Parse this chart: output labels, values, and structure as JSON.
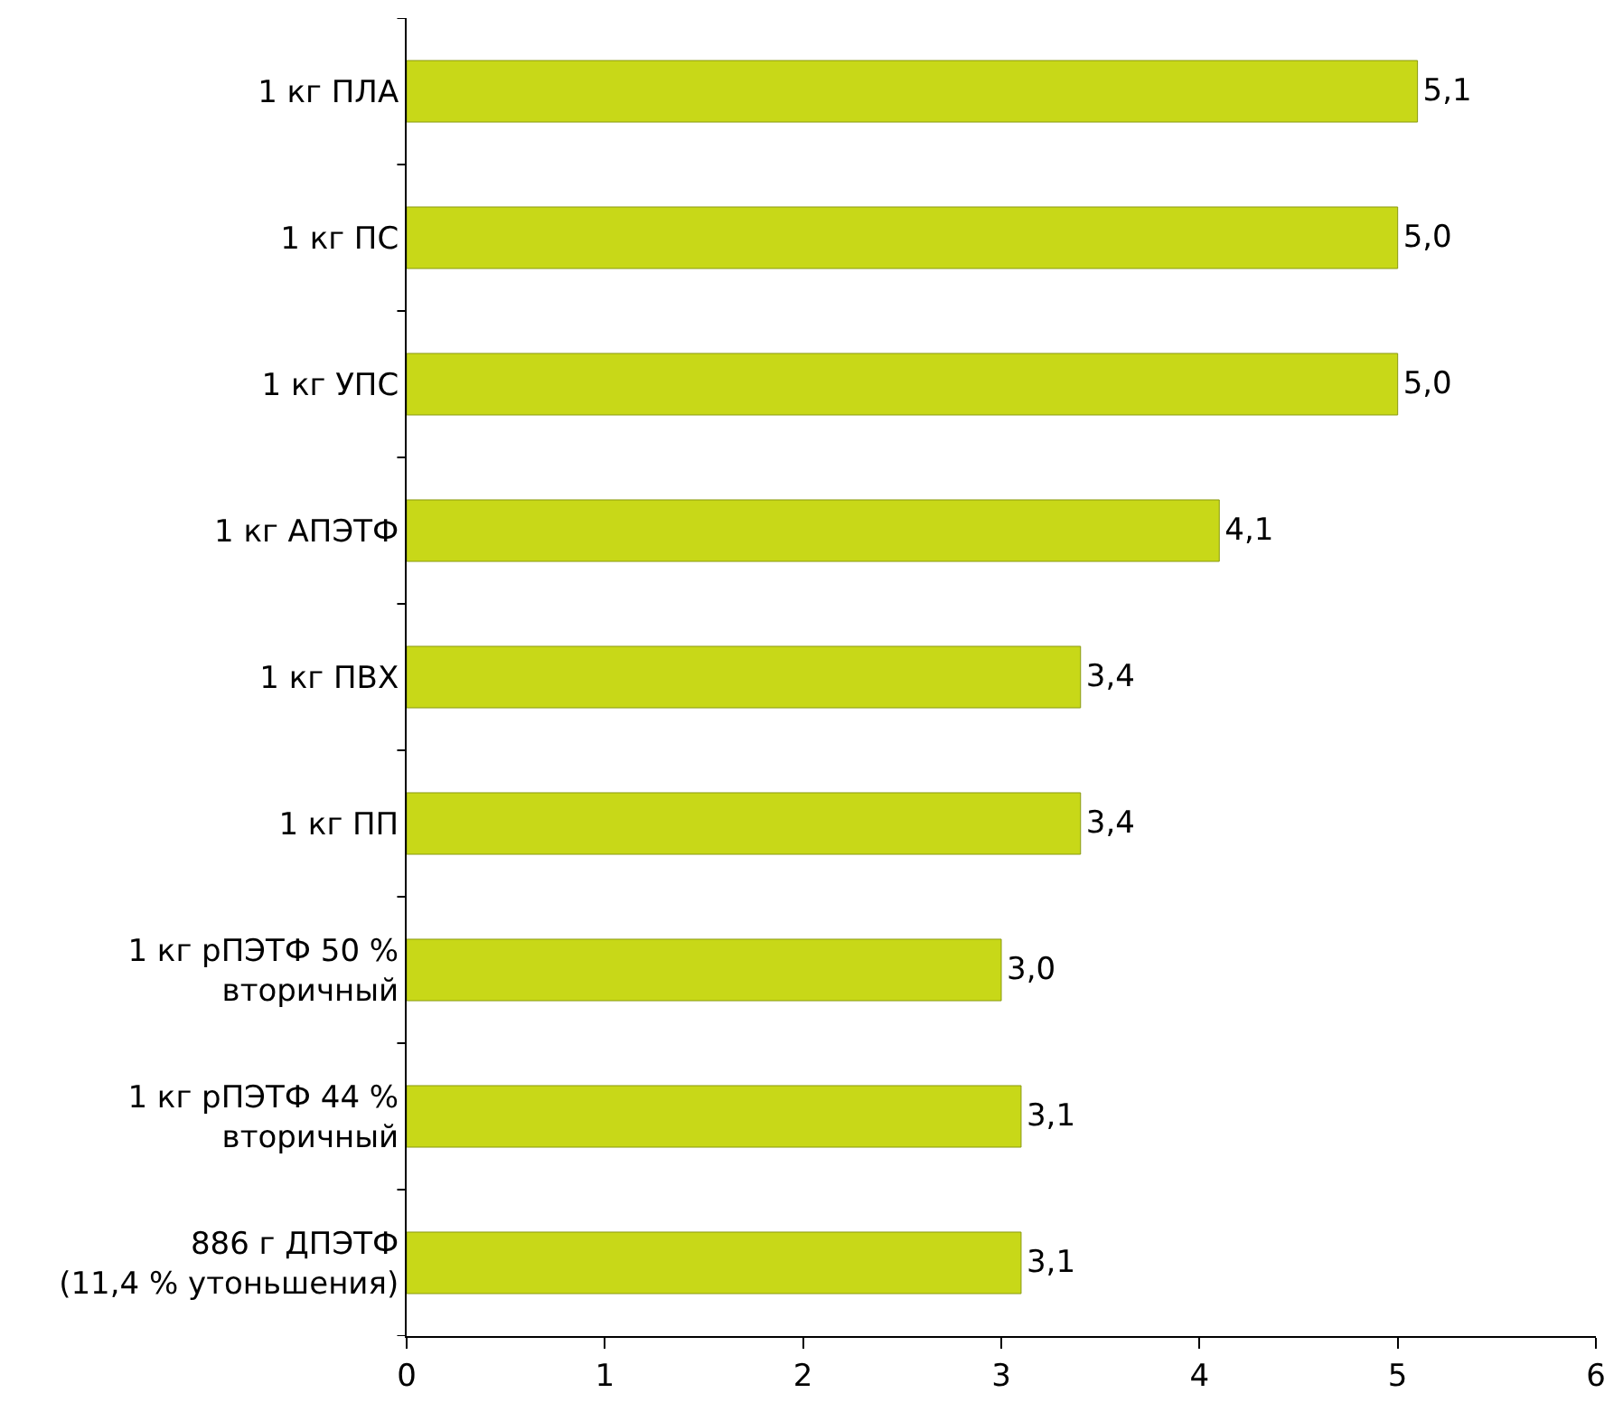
{
  "chart_data": {
    "type": "bar",
    "orientation": "horizontal",
    "categories": [
      "1 кг ПЛА",
      "1 кг ПС",
      "1 кг УПС",
      "1 кг АПЭТФ",
      "1 кг ПВХ",
      "1 кг ПП",
      "1 кг рПЭТФ 50 %\nвторичный",
      "1 кг рПЭТФ 44 %\nвторичный",
      "886 г ДПЭТФ\n(11,4 % утоньшения)"
    ],
    "values": [
      5.1,
      5.0,
      5.0,
      4.1,
      3.4,
      3.4,
      3.0,
      3.1,
      3.1
    ],
    "value_labels": [
      "5,1",
      "5,0",
      "5,0",
      "4,1",
      "3,4",
      "3,4",
      "3,0",
      "3,1",
      "3,1"
    ],
    "color": "#c8d818",
    "xlim": [
      0,
      6
    ],
    "xticks": [
      0,
      1,
      2,
      3,
      4,
      5,
      6
    ]
  }
}
